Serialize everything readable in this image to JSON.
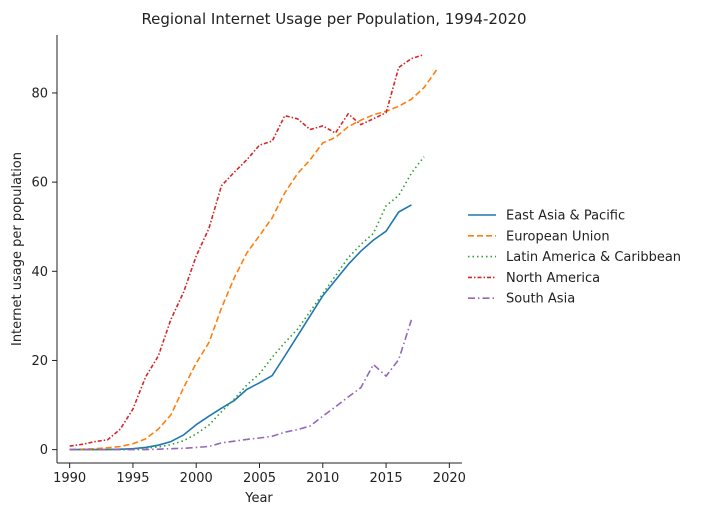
{
  "chart_data": {
    "type": "line",
    "title": "Regional Internet Usage per Population, 1994-2020",
    "xlabel": "Year",
    "ylabel": "Internet usage per population",
    "xlim": [
      1989,
      2021
    ],
    "ylim": [
      -3,
      93
    ],
    "xticks": [
      1990,
      1995,
      2000,
      2005,
      2010,
      2015,
      2020
    ],
    "yticks": [
      0,
      20,
      40,
      60,
      80
    ],
    "grid": false,
    "legend_position": "right",
    "series": [
      {
        "name": "East Asia & Pacific",
        "color": "#1f77b4",
        "dash": "solid",
        "x": [
          1990,
          1991,
          1992,
          1993,
          1994,
          1995,
          1996,
          1997,
          1998,
          1999,
          2000,
          2001,
          2002,
          2003,
          2004,
          2005,
          2006,
          2007,
          2008,
          2009,
          2010,
          2011,
          2012,
          2013,
          2014,
          2015,
          2016,
          2017
        ],
        "y": [
          0,
          0,
          0,
          0,
          0.1,
          0.2,
          0.5,
          1.0,
          1.8,
          3.3,
          5.6,
          7.5,
          9.3,
          11.0,
          13.5,
          15.0,
          16.6,
          21.0,
          25.5,
          30.0,
          34.5,
          38.0,
          41.5,
          44.5,
          47.0,
          49.0,
          53.3,
          54.9
        ]
      },
      {
        "name": "European Union",
        "color": "#ff7f0e",
        "dash": "dashed",
        "x": [
          1990,
          1991,
          1992,
          1993,
          1994,
          1995,
          1996,
          1997,
          1998,
          1999,
          2000,
          2001,
          2002,
          2003,
          2004,
          2005,
          2006,
          2007,
          2008,
          2009,
          2010,
          2011,
          2012,
          2013,
          2014,
          2015,
          2016,
          2017,
          2018,
          2019
        ],
        "y": [
          0,
          0.1,
          0.2,
          0.4,
          0.7,
          1.3,
          2.4,
          4.6,
          7.8,
          13.9,
          19.4,
          24.0,
          31.8,
          38.5,
          44.1,
          48.0,
          52.0,
          57.6,
          61.9,
          65.0,
          68.8,
          70.0,
          72.4,
          73.9,
          75.1,
          75.9,
          77.0,
          78.6,
          81.2,
          85.2
        ]
      },
      {
        "name": "Latin America & Caribbean",
        "color": "#2ca02c",
        "dash": "dotted",
        "x": [
          1990,
          1991,
          1992,
          1993,
          1994,
          1995,
          1996,
          1997,
          1998,
          1999,
          2000,
          2001,
          2002,
          2003,
          2004,
          2005,
          2006,
          2007,
          2008,
          2009,
          2010,
          2011,
          2012,
          2013,
          2014,
          2015,
          2016,
          2017,
          2018
        ],
        "y": [
          0,
          0,
          0,
          0,
          0,
          0.1,
          0.3,
          0.6,
          1.1,
          2.0,
          3.5,
          5.5,
          8.5,
          11.3,
          14.5,
          17.0,
          20.7,
          24.0,
          27.0,
          31.0,
          35.0,
          39.0,
          43.0,
          46.0,
          48.5,
          54.7,
          57.0,
          62.0,
          65.7
        ]
      },
      {
        "name": "North America",
        "color": "#d62728",
        "dash": "dashdot2",
        "x": [
          1990,
          1991,
          1992,
          1993,
          1994,
          1995,
          1996,
          1997,
          1998,
          1999,
          2000,
          2001,
          2002,
          2003,
          2004,
          2005,
          2006,
          2007,
          2008,
          2009,
          2010,
          2011,
          2012,
          2013,
          2014,
          2015,
          2016,
          2017,
          2018
        ],
        "y": [
          0.8,
          1.2,
          1.8,
          2.2,
          4.6,
          9.1,
          16.3,
          21.0,
          29.2,
          35.3,
          43.4,
          49.6,
          59.2,
          62.2,
          65.0,
          68.3,
          69.2,
          74.9,
          74.2,
          71.8,
          72.6,
          71.0,
          75.3,
          72.9,
          74.2,
          75.6,
          85.7,
          87.7,
          88.6
        ]
      },
      {
        "name": "South Asia",
        "color": "#9467bd",
        "dash": "dashdot",
        "x": [
          1990,
          1991,
          1992,
          1993,
          1994,
          1995,
          1996,
          1997,
          1998,
          1999,
          2000,
          2001,
          2002,
          2003,
          2004,
          2005,
          2006,
          2007,
          2008,
          2009,
          2010,
          2011,
          2012,
          2013,
          2014,
          2015,
          2016,
          2017
        ],
        "y": [
          0,
          0,
          0,
          0,
          0,
          0,
          0,
          0.1,
          0.2,
          0.3,
          0.5,
          0.7,
          1.5,
          1.9,
          2.3,
          2.6,
          3.0,
          3.9,
          4.5,
          5.3,
          7.5,
          9.6,
          11.8,
          13.9,
          19.1,
          16.5,
          20.2,
          29.1
        ]
      }
    ]
  }
}
